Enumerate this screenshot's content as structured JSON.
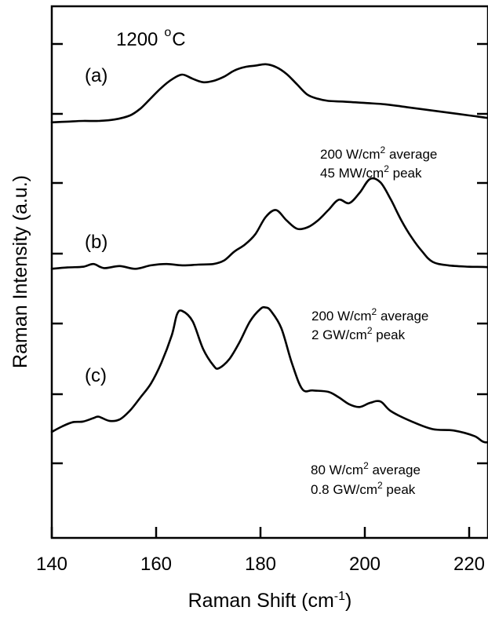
{
  "chart_data": {
    "type": "line",
    "title": "",
    "xlabel_main": "Raman Shift (cm",
    "xlabel_sup": "-1",
    "xlabel_end": ")",
    "ylabel": "Raman Intensity (a.u.)",
    "xlim": [
      140,
      230
    ],
    "xticks": [
      140,
      160,
      180,
      200,
      220
    ],
    "temperature_label": "1200",
    "temperature_unit_deg": "o",
    "temperature_unit_c": "C",
    "series": [
      {
        "name": "(a)",
        "offset": 4.48,
        "power_average_value": "200 W/cm",
        "power_average_sup": "2",
        "power_average_suffix": " average",
        "power_peak_value": "45 MW/cm",
        "power_peak_sup": "2",
        "power_peak_suffix": "  peak",
        "x": [
          140,
          143,
          146,
          149,
          152,
          155,
          157,
          159,
          161,
          163,
          165,
          167,
          169,
          171,
          173,
          175,
          177,
          179,
          181,
          183,
          185,
          187,
          189,
          191,
          193,
          196,
          200,
          204,
          208,
          212,
          216,
          220,
          224,
          228,
          230
        ],
        "y": [
          0.0,
          0.01,
          0.02,
          0.02,
          0.04,
          0.1,
          0.2,
          0.35,
          0.5,
          0.62,
          0.69,
          0.63,
          0.58,
          0.6,
          0.66,
          0.75,
          0.8,
          0.82,
          0.84,
          0.8,
          0.7,
          0.55,
          0.4,
          0.34,
          0.31,
          0.3,
          0.28,
          0.26,
          0.22,
          0.18,
          0.14,
          0.1,
          0.06,
          0.03,
          0.02
        ]
      },
      {
        "name": "(b)",
        "offset": 2.36,
        "power_average_value": "200 W/cm",
        "power_average_sup": "2",
        "power_average_suffix": " average",
        "power_peak_value": "2 GW/cm",
        "power_peak_sup": "2",
        "power_peak_suffix": "  peak",
        "x": [
          140,
          143,
          146,
          148,
          150,
          153,
          156,
          159,
          162,
          165,
          168,
          171,
          173,
          175,
          177,
          179,
          181,
          183,
          185,
          187,
          189,
          191,
          193,
          195,
          197,
          199,
          201,
          203,
          205,
          207,
          209,
          211,
          213,
          216,
          220,
          224,
          228,
          230
        ],
        "y": [
          0.0,
          0.02,
          0.03,
          0.07,
          0.01,
          0.04,
          0.0,
          0.05,
          0.07,
          0.05,
          0.06,
          0.07,
          0.12,
          0.25,
          0.35,
          0.5,
          0.75,
          0.85,
          0.7,
          0.58,
          0.6,
          0.7,
          0.85,
          1.0,
          0.95,
          1.1,
          1.3,
          1.25,
          1.0,
          0.7,
          0.45,
          0.25,
          0.1,
          0.05,
          0.03,
          0.02,
          -0.05,
          -0.07
        ]
      },
      {
        "name": "(c)",
        "offset": 0.0,
        "power_average_value": "80 W/cm",
        "power_average_sup": "2",
        "power_average_suffix": " average",
        "power_peak_value": "0.8 GW/cm",
        "power_peak_sup": "2",
        "power_peak_suffix": "  peak",
        "x": [
          140,
          142,
          144,
          146,
          148,
          149,
          151,
          153,
          155,
          157,
          159,
          161,
          163,
          164,
          165,
          167,
          169,
          171,
          172,
          174,
          176,
          178,
          180,
          181,
          182,
          184,
          186,
          188,
          190,
          193,
          195,
          197,
          199,
          201,
          203,
          205,
          209,
          213,
          217,
          221,
          223,
          226,
          230
        ],
        "y": [
          0.0,
          0.08,
          0.14,
          0.15,
          0.2,
          0.22,
          0.16,
          0.18,
          0.31,
          0.5,
          0.7,
          1.0,
          1.4,
          1.7,
          1.75,
          1.6,
          1.2,
          0.96,
          0.92,
          1.05,
          1.3,
          1.6,
          1.78,
          1.8,
          1.75,
          1.5,
          1.0,
          0.62,
          0.6,
          0.58,
          0.5,
          0.4,
          0.36,
          0.42,
          0.44,
          0.3,
          0.15,
          0.04,
          0.02,
          -0.06,
          -0.15,
          -0.12,
          -0.14
        ]
      }
    ]
  }
}
